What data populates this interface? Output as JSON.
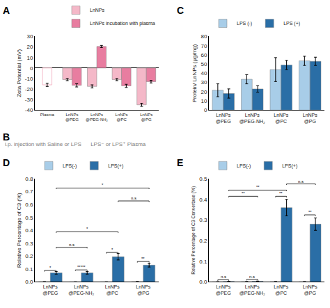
{
  "chart_data": [
    {
      "type": "bar",
      "title": "A",
      "categories": [
        "Plasma",
        "LnNPs\n@PEG",
        "LnNPs\n@PEG-NH₂",
        "LnNPs\n@PC",
        "LnNPs\n@PG"
      ],
      "series": [
        {
          "color": "#f4b8c8",
          "marker": "outline",
          "values": [
            -16.0,
            null,
            null,
            null,
            null
          ],
          "errors": [
            1.5,
            null,
            null,
            null,
            null
          ]
        },
        {
          "name": "LnNPs",
          "color": "#f4b8c8",
          "values": [
            null,
            -11.0,
            -17.5,
            -11.0,
            -35.0
          ],
          "errors": [
            null,
            1.0,
            1.5,
            1.0,
            1.5
          ]
        },
        {
          "name": "LnNPs incubation with plasma",
          "color": "#e87da0",
          "values": [
            null,
            -16.5,
            20.5,
            -17.0,
            -13.0
          ],
          "errors": [
            null,
            1.5,
            1.0,
            1.5,
            1.2
          ]
        }
      ],
      "ylabel": "Zeta Potential (mV)",
      "ylim": [
        -40,
        30
      ],
      "yticks": [
        -40,
        -30,
        -20,
        -10,
        0,
        10,
        20,
        30
      ],
      "grid": false,
      "legend": "upper right"
    },
    {
      "type": "bar",
      "title": "C",
      "categories": [
        "LnNPs\n@PEG",
        "LnNPs\n@PEG-NH₂",
        "LnNPs\n@PC",
        "LnNPs\n@PG"
      ],
      "series": [
        {
          "name": "LPS (-)",
          "color": "#a8cde8",
          "values": [
            21.5,
            33.5,
            44.0,
            53.5
          ],
          "errors": [
            7.0,
            5.0,
            13.0,
            5.0
          ]
        },
        {
          "name": "LPS (+)",
          "color": "#2a6ea6",
          "values": [
            18.0,
            23.0,
            49.0,
            53.0
          ],
          "errors": [
            5.0,
            3.5,
            5.0,
            4.5
          ]
        }
      ],
      "ylabel": "Protein/ LnNPs (μg/mg)",
      "ylim": [
        0,
        80
      ],
      "yticks": [
        0,
        10,
        20,
        30,
        40,
        50,
        60,
        70,
        80
      ],
      "grid": false,
      "legend": "upper left"
    },
    {
      "type": "text",
      "title": "B",
      "annotations": [
        {
          "text": "i.p. injection with Saline or LPS      LPS⁻ or LPS⁺ Plasma",
          "color": "gray"
        }
      ]
    },
    {
      "type": "bar",
      "title": "D",
      "categories": [
        "LnNPs\n@PEG",
        "LnNPs\n@PEG-NH₂",
        "LnNPs\n@PC",
        "LnNPs\n@PG"
      ],
      "series": [
        {
          "name": "LPS(-)",
          "color": "#a8cde8",
          "values": [
            0.001,
            0.0004,
            0.0004,
            0.0018
          ],
          "errors": [
            0.0003,
            0.0001,
            0.0001,
            0.0003
          ]
        },
        {
          "name": "LPS(+)",
          "color": "#2a6ea6",
          "values": [
            0.07,
            0.07,
            0.195,
            0.13
          ],
          "errors": [
            0.01,
            0.01,
            0.025,
            0.015
          ]
        }
      ],
      "ylabel": "Relative Percentage of C3 (%)",
      "ylim": [
        0,
        0.8
      ],
      "yticks": [
        {
          "value": 0,
          "label": "0.0"
        },
        0.1,
        0.2,
        0.3,
        0.4,
        0.5,
        0.6,
        0.7,
        0.8
      ],
      "grid": false,
      "legend": "upper left",
      "annotations": [
        {
          "text": "*",
          "y": 0.08,
          "from": {
            "category": "LnNPs\n@PEG",
            "series": "LPS(-)"
          },
          "to": {
            "category": "LnNPs\n@PEG",
            "series": "LPS(+)"
          }
        },
        {
          "text": "*****",
          "y": 0.085,
          "from": {
            "category": "LnNPs\n@PEG-NH₂",
            "series": "LPS(-)"
          },
          "to": {
            "category": "LnNPs\n@PEG-NH₂",
            "series": "LPS(+)"
          }
        },
        {
          "text": "*",
          "y": 0.22,
          "from": {
            "category": "LnNPs\n@PC",
            "series": "LPS(-)"
          },
          "to": {
            "category": "LnNPs\n@PC",
            "series": "LPS(+)"
          }
        },
        {
          "text": "**",
          "y": 0.15,
          "from": {
            "category": "LnNPs\n@PG",
            "series": "LPS(-)"
          },
          "to": {
            "category": "LnNPs\n@PG",
            "series": "LPS(+)"
          }
        },
        {
          "text": "n.s",
          "y": 0.26,
          "from": {
            "category": "LnNPs\n@PEG",
            "series": "LPS(+)"
          },
          "to": {
            "category": "LnNPs\n@PEG-NH₂",
            "series": "LPS(+)"
          }
        },
        {
          "text": "*",
          "y": 0.38,
          "from": {
            "category": "LnNPs\n@PEG",
            "series": "LPS(+)"
          },
          "to": {
            "category": "LnNPs\n@PC",
            "series": "LPS(+)"
          }
        },
        {
          "text": "n.s",
          "y": 0.62,
          "from": {
            "category": "LnNPs\n@PC",
            "series": "LPS(+)"
          },
          "to": {
            "category": "LnNPs\n@PG",
            "series": "LPS(+)"
          }
        },
        {
          "text": "*",
          "y": 0.72,
          "from": {
            "category": "LnNPs\n@PEG",
            "series": "LPS(+)"
          },
          "to": {
            "category": "LnNPs\n@PG",
            "series": "LPS(+)"
          }
        }
      ]
    },
    {
      "type": "bar",
      "title": "E",
      "categories": [
        "LnNPs\n@PEG",
        "LnNPs\n@PEG-NH₂",
        "LnNPs\n@PC",
        "LnNPs\n@PG"
      ],
      "series": [
        {
          "name": "LPS(-)",
          "color": "#a8cde8",
          "values": [
            0.0005,
            0.001,
            0.001,
            0.0008
          ],
          "errors": [
            0.0002,
            0.0003,
            0.0003,
            0.0002
          ]
        },
        {
          "name": "LPS(+)",
          "color": "#2a6ea6",
          "values": [
            0.002,
            0.003,
            0.36,
            0.28
          ],
          "errors": [
            0.0005,
            0.0008,
            0.04,
            0.03
          ]
        }
      ],
      "ylabel": "Relative Percentage of C3 Convertase (%)",
      "ylim": [
        0,
        0.5
      ],
      "yticks": [
        {
          "value": 0,
          "label": "0.0"
        },
        0.1,
        0.2,
        0.3,
        0.4,
        0.5
      ],
      "grid": false,
      "legend": "upper left",
      "annotations": [
        {
          "text": "n.s",
          "y": 0.005,
          "from": {
            "category": "LnNPs\n@PEG",
            "series": "LPS(-)"
          },
          "to": {
            "category": "LnNPs\n@PEG",
            "series": "LPS(+)"
          }
        },
        {
          "text": "n.s",
          "y": 0.007,
          "from": {
            "category": "LnNPs\n@PEG-NH₂",
            "series": "LPS(-)"
          },
          "to": {
            "category": "LnNPs\n@PEG-NH₂",
            "series": "LPS(+)"
          }
        },
        {
          "text": "**",
          "y": 0.41,
          "from": {
            "category": "LnNPs\n@PC",
            "series": "LPS(-)"
          },
          "to": {
            "category": "LnNPs\n@PC",
            "series": "LPS(+)"
          }
        },
        {
          "text": "**",
          "y": 0.32,
          "from": {
            "category": "LnNPs\n@PG",
            "series": "LPS(-)"
          },
          "to": {
            "category": "LnNPs\n@PG",
            "series": "LPS(+)"
          }
        },
        {
          "text": "**",
          "y": 0.41,
          "from": {
            "category": "LnNPs\n@PEG",
            "series": "LPS(+)"
          },
          "to": {
            "category": "LnNPs\n@PEG-NH₂",
            "series": "LPS(+)"
          }
        },
        {
          "text": "**",
          "y": 0.44,
          "from": {
            "category": "LnNPs\n@PEG",
            "series": "LPS(+)"
          },
          "to": {
            "category": "LnNPs\n@PC",
            "series": "LPS(+)"
          }
        },
        {
          "text": "n.s",
          "y": 0.47,
          "from": {
            "category": "LnNPs\n@PC",
            "series": "LPS(+)"
          },
          "to": {
            "category": "LnNPs\n@PG",
            "series": "LPS(+)"
          }
        }
      ]
    }
  ]
}
